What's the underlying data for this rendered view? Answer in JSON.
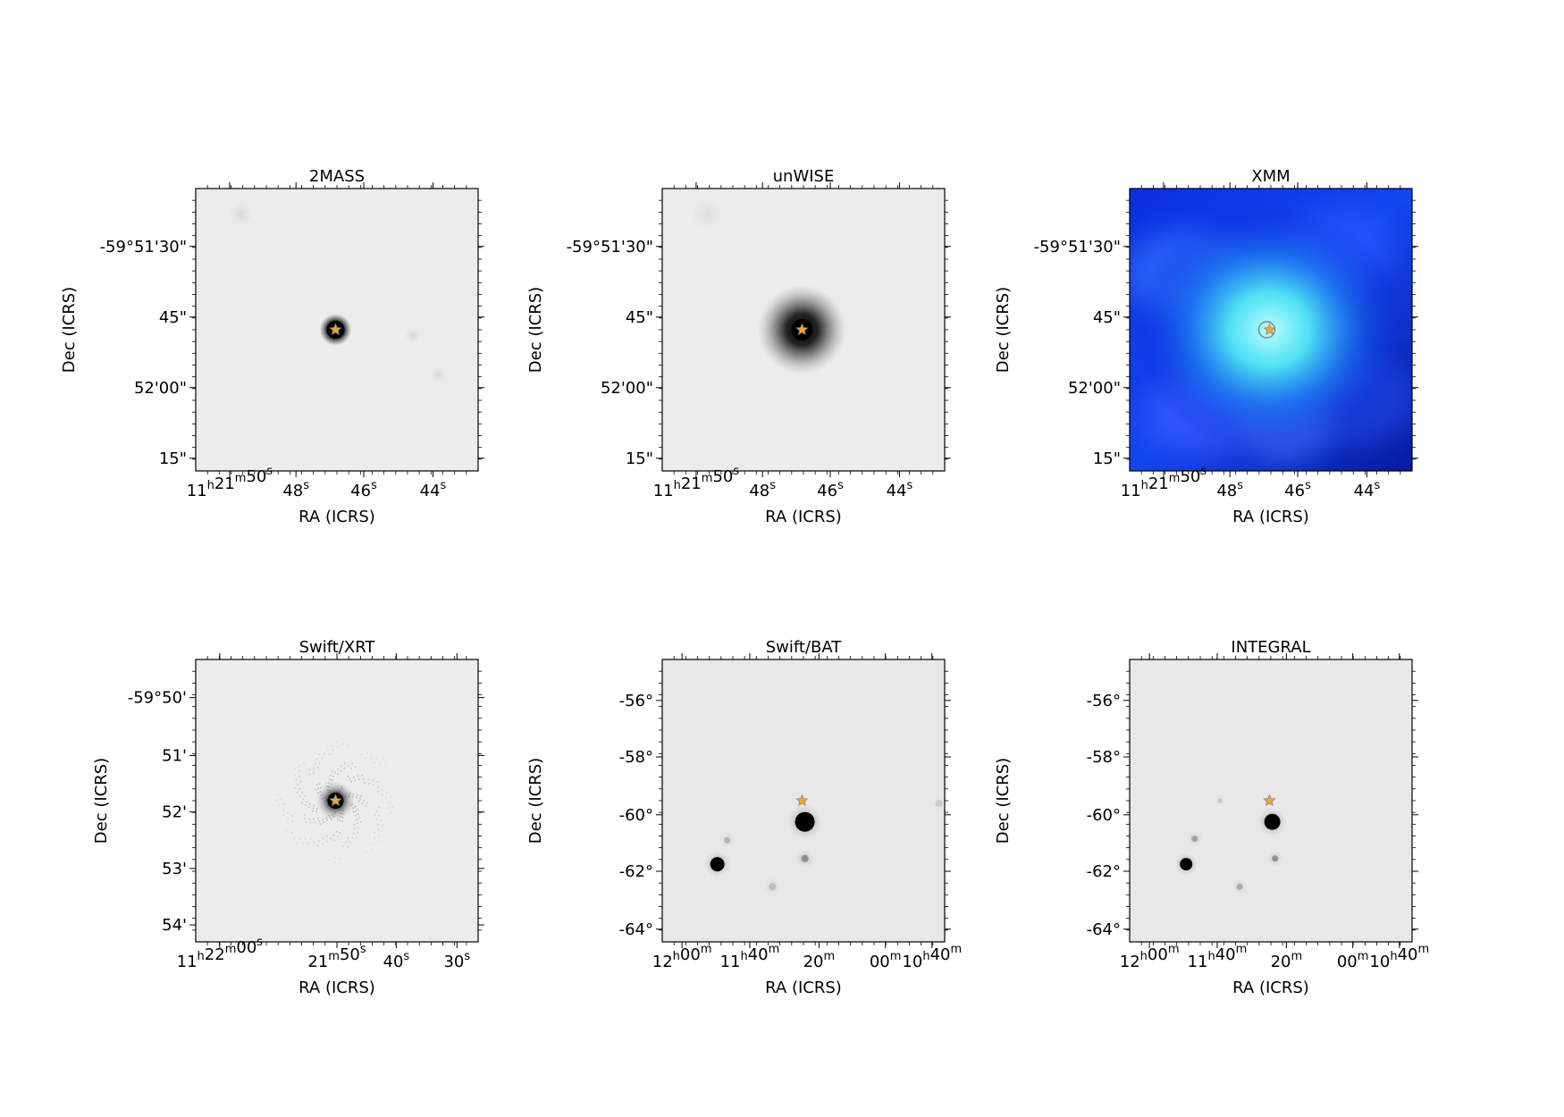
{
  "figure": {
    "panels": [
      {
        "title": "2MASS",
        "xlabel": "RA (ICRS)",
        "ylabel": "Dec (ICRS)",
        "style": "gray-point",
        "xticks": [
          {
            "main": "11",
            "sup": "h",
            "parts": [
              [
                "11",
                "h"
              ],
              [
                "21",
                "m"
              ],
              [
                "50",
                "s"
              ]
            ]
          },
          {
            "parts": [
              [
                "48",
                "s"
              ]
            ]
          },
          {
            "parts": [
              [
                "46",
                "s"
              ]
            ]
          },
          {
            "parts": [
              [
                "44",
                "s"
              ]
            ]
          }
        ],
        "yticks": [
          "-59°51'30\"",
          "45\"",
          "52'00\"",
          "15\""
        ]
      },
      {
        "title": "unWISE",
        "xlabel": "RA (ICRS)",
        "ylabel": "Dec (ICRS)",
        "style": "gray-glow",
        "xticks": [
          {
            "parts": [
              [
                "11",
                "h"
              ],
              [
                "21",
                "m"
              ],
              [
                "50",
                "s"
              ]
            ]
          },
          {
            "parts": [
              [
                "48",
                "s"
              ]
            ]
          },
          {
            "parts": [
              [
                "46",
                "s"
              ]
            ]
          },
          {
            "parts": [
              [
                "44",
                "s"
              ]
            ]
          }
        ],
        "yticks": [
          "-59°51'30\"",
          "45\"",
          "52'00\"",
          "15\""
        ]
      },
      {
        "title": "XMM",
        "xlabel": "RA (ICRS)",
        "ylabel": "Dec (ICRS)",
        "style": "blue",
        "xticks": [
          {
            "parts": [
              [
                "11",
                "h"
              ],
              [
                "21",
                "m"
              ],
              [
                "50",
                "s"
              ]
            ]
          },
          {
            "parts": [
              [
                "48",
                "s"
              ]
            ]
          },
          {
            "parts": [
              [
                "46",
                "s"
              ]
            ]
          },
          {
            "parts": [
              [
                "44",
                "s"
              ]
            ]
          }
        ],
        "yticks": [
          "-59°51'30\"",
          "45\"",
          "52'00\"",
          "15\""
        ]
      },
      {
        "title": "Swift/XRT",
        "xlabel": "RA (ICRS)",
        "ylabel": "Dec (ICRS)",
        "style": "gray-xrt",
        "xticks": [
          {
            "parts": [
              [
                "11",
                "h"
              ],
              [
                "22",
                "m"
              ],
              [
                "00",
                "s"
              ]
            ]
          },
          {
            "parts": [
              [
                "21",
                "m"
              ],
              [
                "50",
                "s"
              ]
            ]
          },
          {
            "parts": [
              [
                "40",
                "s"
              ]
            ]
          },
          {
            "parts": [
              [
                "30",
                "s"
              ]
            ]
          }
        ],
        "yticks": [
          "-59°50'",
          "51'",
          "52'",
          "53'",
          "54'"
        ]
      },
      {
        "title": "Swift/BAT",
        "xlabel": "RA (ICRS)",
        "ylabel": "Dec (ICRS)",
        "style": "gray-field",
        "xticks": [
          {
            "parts": [
              [
                "12",
                "h"
              ],
              [
                "00",
                "m"
              ]
            ]
          },
          {
            "parts": [
              [
                "11",
                "h"
              ],
              [
                "40",
                "m"
              ]
            ]
          },
          {
            "parts": [
              [
                "20",
                "m"
              ]
            ]
          },
          {
            "parts": [
              [
                "00",
                "m"
              ]
            ]
          },
          {
            "parts": [
              [
                "10",
                "h"
              ],
              [
                "40",
                "m"
              ]
            ]
          }
        ],
        "yticks": [
          "-56°",
          "-58°",
          "-60°",
          "-62°",
          "-64°"
        ]
      },
      {
        "title": "INTEGRAL",
        "xlabel": "RA (ICRS)",
        "ylabel": "Dec (ICRS)",
        "style": "gray-field",
        "xticks": [
          {
            "parts": [
              [
                "12",
                "h"
              ],
              [
                "00",
                "m"
              ]
            ]
          },
          {
            "parts": [
              [
                "11",
                "h"
              ],
              [
                "40",
                "m"
              ]
            ]
          },
          {
            "parts": [
              [
                "20",
                "m"
              ]
            ]
          },
          {
            "parts": [
              [
                "00",
                "m"
              ]
            ]
          },
          {
            "parts": [
              [
                "10",
                "h"
              ],
              [
                "40",
                "m"
              ]
            ]
          }
        ],
        "yticks": [
          "-56°",
          "-58°",
          "-60°",
          "-62°",
          "-64°"
        ]
      }
    ],
    "colors": {
      "marker_star": "#f5a623",
      "marker_edge": "#8a8a8a",
      "frame": "#000000"
    }
  },
  "chart_data": [
    {
      "type": "heatmap",
      "title": "2MASS",
      "xlabel": "RA (ICRS)",
      "ylabel": "Dec (ICRS)",
      "xticklabels": [
        "11h21m50s",
        "48s",
        "46s",
        "44s"
      ],
      "yticklabels": [
        "-59°51'30\"",
        "45\"",
        "52'00\"",
        "15\""
      ],
      "colormap": "gray_r",
      "sources": [
        {
          "label": "target",
          "marker": "star"
        }
      ]
    },
    {
      "type": "heatmap",
      "title": "unWISE",
      "xlabel": "RA (ICRS)",
      "ylabel": "Dec (ICRS)",
      "xticklabels": [
        "11h21m50s",
        "48s",
        "46s",
        "44s"
      ],
      "yticklabels": [
        "-59°51'30\"",
        "45\"",
        "52'00\"",
        "15\""
      ],
      "colormap": "gray_r",
      "sources": [
        {
          "label": "target",
          "marker": "star"
        }
      ]
    },
    {
      "type": "heatmap",
      "title": "XMM",
      "xlabel": "RA (ICRS)",
      "ylabel": "Dec (ICRS)",
      "xticklabels": [
        "11h21m50s",
        "48s",
        "46s",
        "44s"
      ],
      "yticklabels": [
        "-59°51'30\"",
        "45\"",
        "52'00\"",
        "15\""
      ],
      "colormap": "blue-cyan",
      "sources": [
        {
          "label": "target",
          "marker": "star"
        }
      ]
    },
    {
      "type": "heatmap",
      "title": "Swift/XRT",
      "xlabel": "RA (ICRS)",
      "ylabel": "Dec (ICRS)",
      "xticklabels": [
        "11h22m00s",
        "21m50s",
        "40s",
        "30s"
      ],
      "yticklabels": [
        "-59°50'",
        "51'",
        "52'",
        "53'",
        "54'"
      ],
      "colormap": "gray_r",
      "sources": [
        {
          "label": "target",
          "marker": "star"
        }
      ]
    },
    {
      "type": "heatmap",
      "title": "Swift/BAT",
      "xlabel": "RA (ICRS)",
      "ylabel": "Dec (ICRS)",
      "xticklabels": [
        "12h00m",
        "11h40m",
        "20m",
        "00m",
        "10h40m"
      ],
      "yticklabels": [
        "-56°",
        "-58°",
        "-60°",
        "-62°",
        "-64°"
      ],
      "colormap": "gray_r",
      "sources": [
        {
          "label": "target",
          "marker": "star"
        }
      ]
    },
    {
      "type": "heatmap",
      "title": "INTEGRAL",
      "xlabel": "RA (ICRS)",
      "ylabel": "Dec (ICRS)",
      "xticklabels": [
        "12h00m",
        "11h40m",
        "20m",
        "00m",
        "10h40m"
      ],
      "yticklabels": [
        "-56°",
        "-58°",
        "-60°",
        "-62°",
        "-64°"
      ],
      "colormap": "gray_r",
      "sources": [
        {
          "label": "target",
          "marker": "star"
        }
      ]
    }
  ]
}
